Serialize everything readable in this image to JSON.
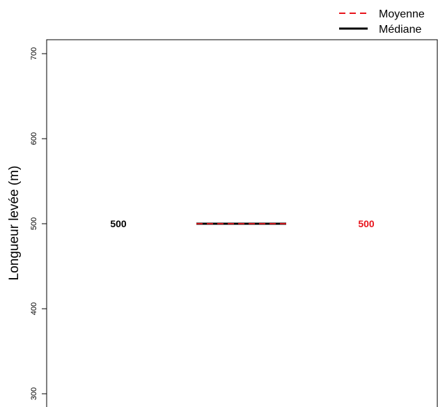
{
  "chart_data": {
    "type": "box",
    "ylabel": "Longueur levée (m)",
    "ylim": [
      300,
      700
    ],
    "yticks": [
      300,
      400,
      500,
      600,
      700
    ],
    "legend": {
      "placement": "top-right",
      "items": [
        {
          "label": "Moyenne",
          "style": "dashed",
          "color": "#e8141c"
        },
        {
          "label": "Médiane",
          "style": "solid",
          "color": "#000000"
        }
      ]
    },
    "series": [
      {
        "mean": 500,
        "median": 500,
        "median_label": "500",
        "mean_label": "500",
        "median_color": "#000000",
        "mean_color": "#e8141c"
      }
    ]
  }
}
